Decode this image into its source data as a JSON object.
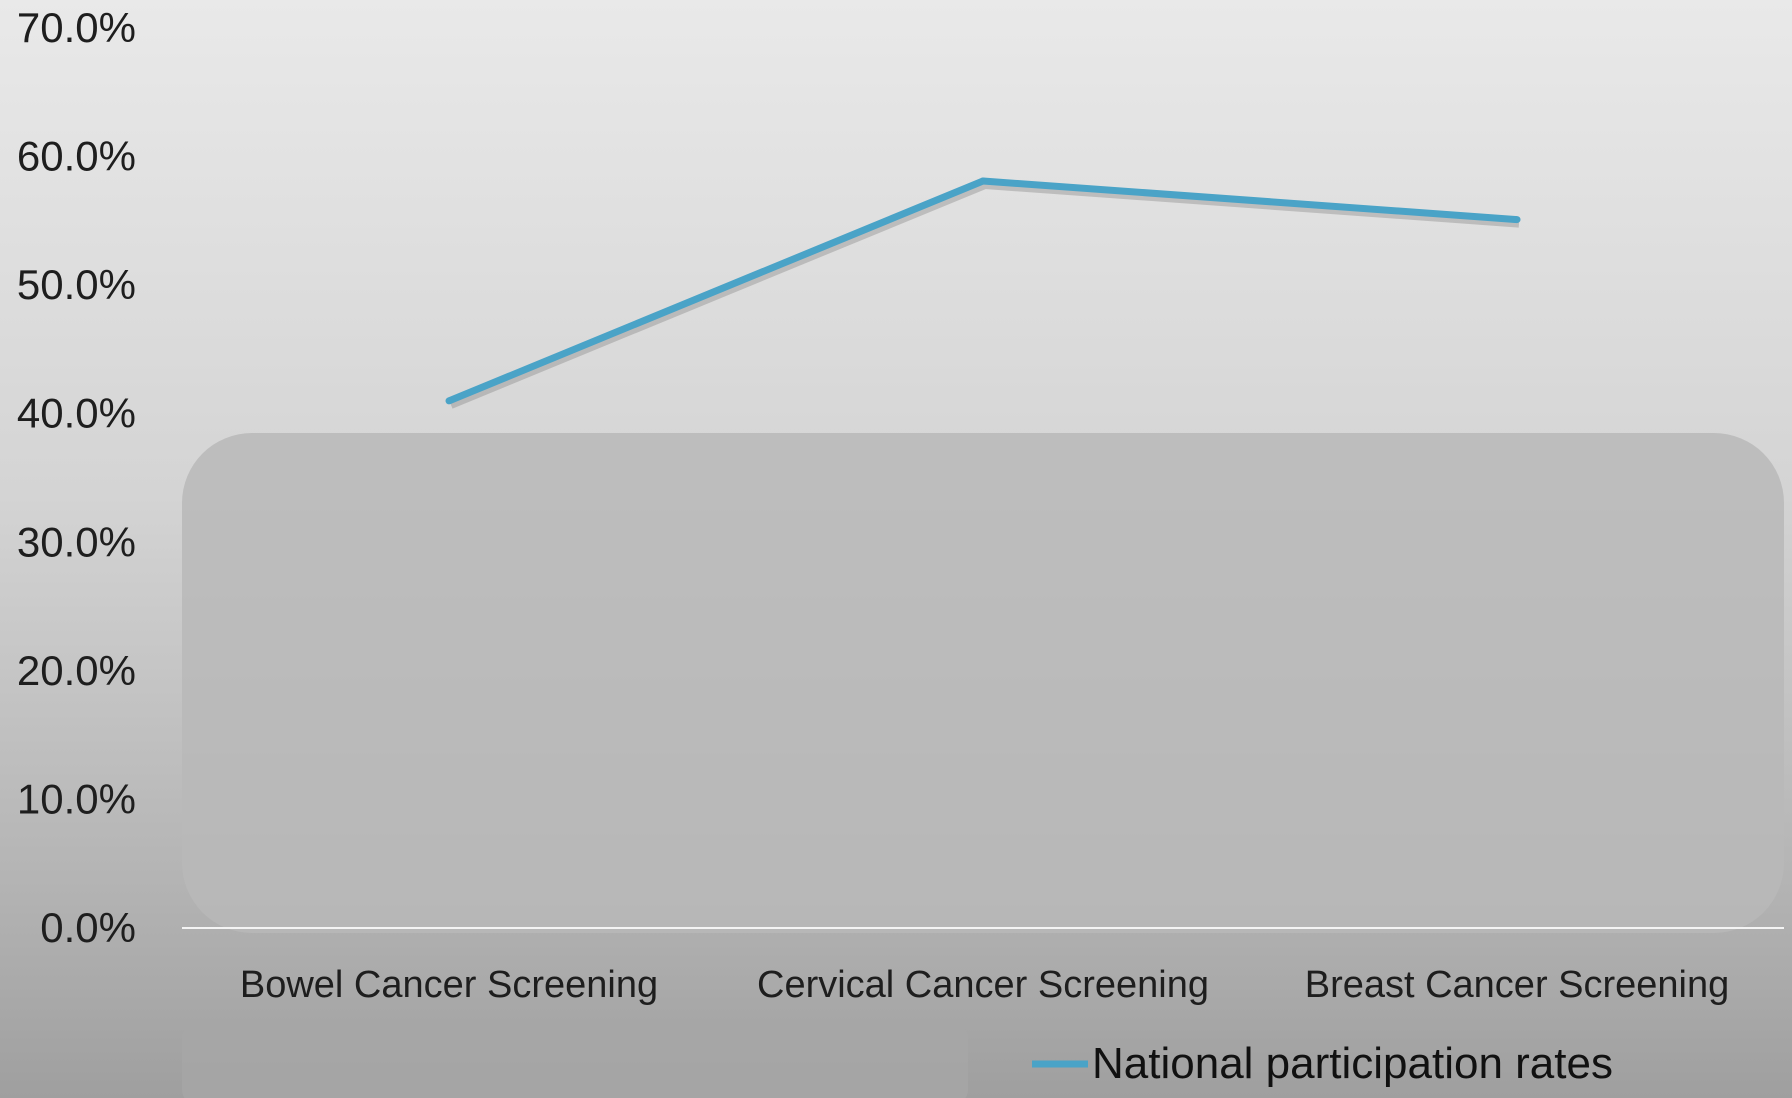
{
  "colors": {
    "series_line": "#4aa3c7",
    "series_shadow": "#7a7a7a",
    "baseline": "#f4f4f4",
    "overlay_panel": "#b9b9b9",
    "legend_panel": "#a6a6a6"
  },
  "chart_data": {
    "type": "line",
    "title": "",
    "xlabel": "",
    "ylabel": "",
    "categories": [
      "Bowel Cancer Screening",
      "Cervical Cancer Screening",
      "Breast Cancer Screening"
    ],
    "y_ticks": [
      "0.0%",
      "10.0%",
      "20.0%",
      "30.0%",
      "40.0%",
      "50.0%",
      "60.0%",
      "70.0%"
    ],
    "ylim": [
      0,
      70
    ],
    "y_unit": "%",
    "grid": false,
    "legend_position": "bottom",
    "series": [
      {
        "name": "National participation rates",
        "values": [
          41.0,
          58.1,
          55.1
        ]
      }
    ]
  }
}
